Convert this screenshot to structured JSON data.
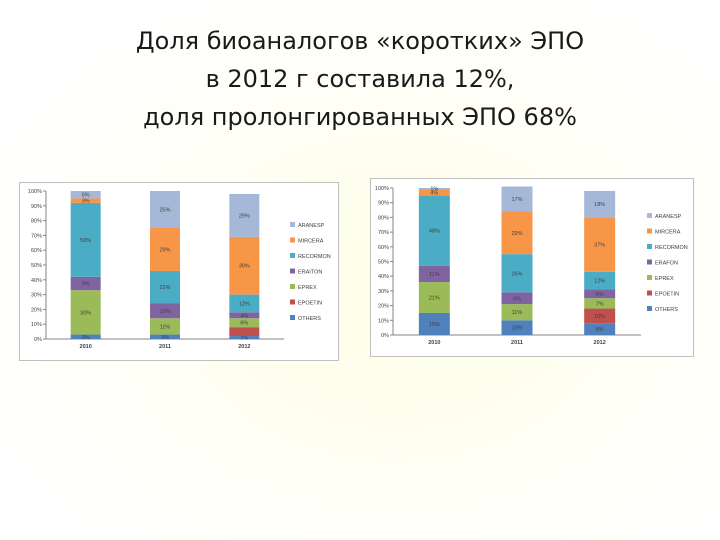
{
  "title": {
    "lines": [
      "Доля биоаналогов «коротких» ЭПО",
      "в 2012 г составила 12%,",
      "доля пролонгированных ЭПО 68%"
    ]
  },
  "chart_data": [
    {
      "type": "bar",
      "stacked": true,
      "categories": [
        "2010",
        "2011",
        "2012"
      ],
      "ylim": [
        0,
        100
      ],
      "yticks": [
        "0%",
        "10%",
        "20%",
        "30%",
        "40%",
        "50%",
        "60%",
        "70%",
        "80%",
        "90%",
        "100%"
      ],
      "legend_position": "right",
      "grid": false,
      "series": [
        {
          "name": "OTHERS",
          "color": "#4f81bd",
          "values": [
            3,
            3,
            2
          ],
          "labels": [
            "3%",
            "3%",
            "2%"
          ]
        },
        {
          "name": "EPOETIN",
          "color": "#c0504d",
          "values": [
            0,
            0,
            6
          ],
          "labels": [
            "",
            "",
            ""
          ]
        },
        {
          "name": "EPREX",
          "color": "#9bbb59",
          "values": [
            30,
            11,
            6
          ],
          "labels": [
            "30%",
            "11%",
            "6%"
          ]
        },
        {
          "name": "ERAITON",
          "color": "#8064a2",
          "values": [
            9,
            10,
            4
          ],
          "labels": [
            "9%",
            "10%",
            "4%"
          ]
        },
        {
          "name": "RECORMON",
          "color": "#4bacc6",
          "values": [
            50,
            22,
            12
          ],
          "labels": [
            "50%",
            "22%",
            "12%"
          ]
        },
        {
          "name": "MIRCERA",
          "color": "#f79646",
          "values": [
            3,
            29,
            39
          ],
          "labels": [
            "3%",
            "29%",
            "39%"
          ]
        },
        {
          "name": "ARANESP",
          "color": "#a6b8d8",
          "values": [
            5,
            25,
            29
          ],
          "labels": [
            "5%",
            "25%",
            "29%"
          ]
        }
      ]
    },
    {
      "type": "bar",
      "stacked": true,
      "categories": [
        "2010",
        "2011",
        "2012"
      ],
      "ylim": [
        0,
        100
      ],
      "yticks": [
        "0%",
        "10%",
        "20%",
        "30%",
        "40%",
        "50%",
        "60%",
        "70%",
        "80%",
        "90%",
        "100%"
      ],
      "legend_position": "right",
      "grid": false,
      "series": [
        {
          "name": "OTHERS",
          "color": "#4f81bd",
          "values": [
            15,
            10,
            8
          ],
          "labels": [
            "15%",
            "10%",
            "8%"
          ]
        },
        {
          "name": "EPOETIN",
          "color": "#c0504d",
          "values": [
            0,
            0,
            10
          ],
          "labels": [
            "",
            "",
            "10%"
          ]
        },
        {
          "name": "EPREX",
          "color": "#9bbb59",
          "values": [
            21,
            11,
            7
          ],
          "labels": [
            "21%",
            "11%",
            "7%"
          ]
        },
        {
          "name": "ERAFON",
          "color": "#8064a2",
          "values": [
            11,
            8,
            6
          ],
          "labels": [
            "11%",
            "8%",
            "6%"
          ]
        },
        {
          "name": "RECORMON",
          "color": "#4bacc6",
          "values": [
            48,
            26,
            12
          ],
          "labels": [
            "48%",
            "26%",
            "12%"
          ]
        },
        {
          "name": "MIRCERA",
          "color": "#f79646",
          "values": [
            4,
            29,
            37
          ],
          "labels": [
            "4%",
            "29%",
            "37%"
          ]
        },
        {
          "name": "ARANESP",
          "color": "#a6b8d8",
          "values": [
            1,
            17,
            18
          ],
          "labels": [
            "1%",
            "17%",
            "18%"
          ]
        }
      ]
    }
  ]
}
